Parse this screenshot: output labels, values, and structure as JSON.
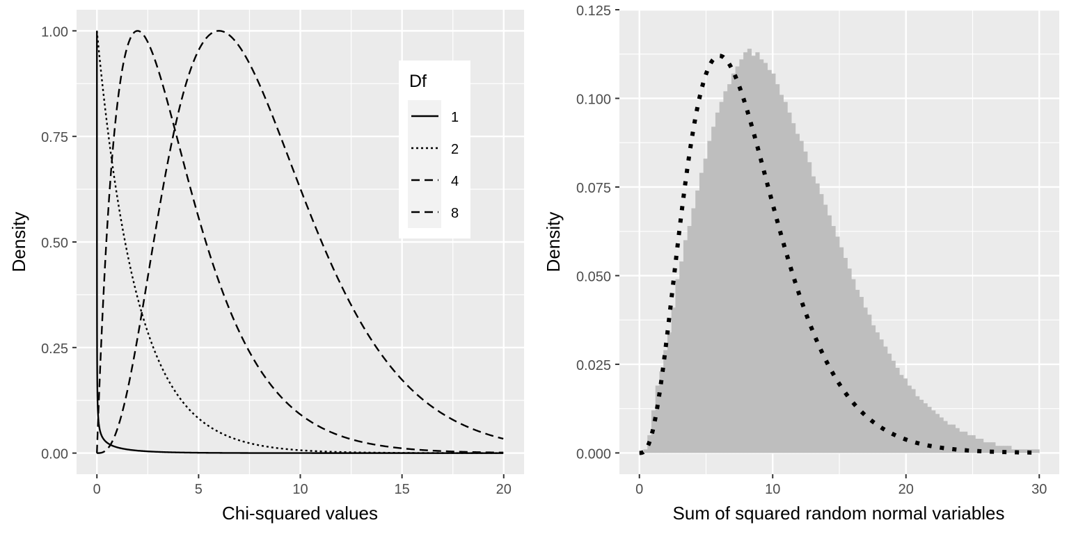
{
  "chart_data": [
    {
      "type": "line",
      "xlabel": "Chi-squared values",
      "ylabel": "Density",
      "xlim": [
        -1,
        21
      ],
      "ylim": [
        -0.05,
        1.05
      ],
      "x_ticks": [
        0,
        5,
        10,
        15,
        20
      ],
      "x_tick_labels": [
        "0",
        "5",
        "10",
        "15",
        "20"
      ],
      "y_ticks": [
        0,
        0.25,
        0.5,
        0.75,
        1.0
      ],
      "y_tick_labels": [
        "0.00",
        "0.25",
        "0.50",
        "0.75",
        "1.00"
      ],
      "grid": true,
      "legend": {
        "title": "Df",
        "placement": "top-right"
      },
      "x_range": [
        0,
        20
      ],
      "series": [
        {
          "name": "1",
          "df": 1,
          "dash": "solid",
          "values_normalized_to_max": true
        },
        {
          "name": "2",
          "df": 2,
          "dash": "dotted",
          "values_normalized_to_max": true
        },
        {
          "name": "4",
          "df": 4,
          "dash": "dashed",
          "values_normalized_to_max": true
        },
        {
          "name": "8",
          "df": 8,
          "dash": "dashed",
          "values_normalized_to_max": true
        }
      ]
    },
    {
      "type": "bar",
      "subtype": "histogram",
      "xlabel": "Sum of squared random normal variables",
      "ylabel": "Density",
      "xlim": [
        -1.5,
        31.5
      ],
      "ylim": [
        -0.006,
        0.125
      ],
      "x_ticks": [
        0,
        10,
        20,
        30
      ],
      "x_tick_labels": [
        "0",
        "10",
        "20",
        "30"
      ],
      "y_ticks": [
        0,
        0.025,
        0.05,
        0.075,
        0.1,
        0.125
      ],
      "y_tick_labels": [
        "0.000",
        "0.025",
        "0.050",
        "0.075",
        "0.100",
        "0.125"
      ],
      "grid": true,
      "bin_width": 0.3,
      "bin_start": 0,
      "histogram_heights": [
        0.0,
        0.001,
        0.005,
        0.012,
        0.019,
        0.023,
        0.029,
        0.034,
        0.041,
        0.049,
        0.054,
        0.06,
        0.064,
        0.069,
        0.074,
        0.079,
        0.083,
        0.088,
        0.092,
        0.096,
        0.099,
        0.102,
        0.104,
        0.107,
        0.109,
        0.111,
        0.113,
        0.114,
        0.112,
        0.113,
        0.111,
        0.11,
        0.108,
        0.107,
        0.104,
        0.101,
        0.099,
        0.096,
        0.093,
        0.09,
        0.088,
        0.085,
        0.082,
        0.078,
        0.076,
        0.073,
        0.07,
        0.067,
        0.064,
        0.061,
        0.058,
        0.055,
        0.052,
        0.049,
        0.046,
        0.044,
        0.041,
        0.039,
        0.036,
        0.034,
        0.032,
        0.03,
        0.028,
        0.026,
        0.024,
        0.022,
        0.021,
        0.019,
        0.018,
        0.016,
        0.015,
        0.014,
        0.013,
        0.012,
        0.011,
        0.01,
        0.009,
        0.008,
        0.008,
        0.007,
        0.006,
        0.006,
        0.005,
        0.005,
        0.004,
        0.004,
        0.003,
        0.003,
        0.003,
        0.002,
        0.002,
        0.002,
        0.002,
        0.001,
        0.001,
        0.001,
        0.001,
        0.001,
        0.001,
        0.001
      ],
      "overlay": {
        "df": 8,
        "style": "dotted",
        "x_range": [
          0,
          29.7
        ]
      },
      "bar_color": "#bebebe"
    }
  ],
  "colors": {
    "panel_bg": "#ebebeb",
    "grid": "#ffffff",
    "axis_text": "#4d4d4d",
    "title_text": "#000000",
    "legend_key_bg": "#f2f2f2"
  }
}
